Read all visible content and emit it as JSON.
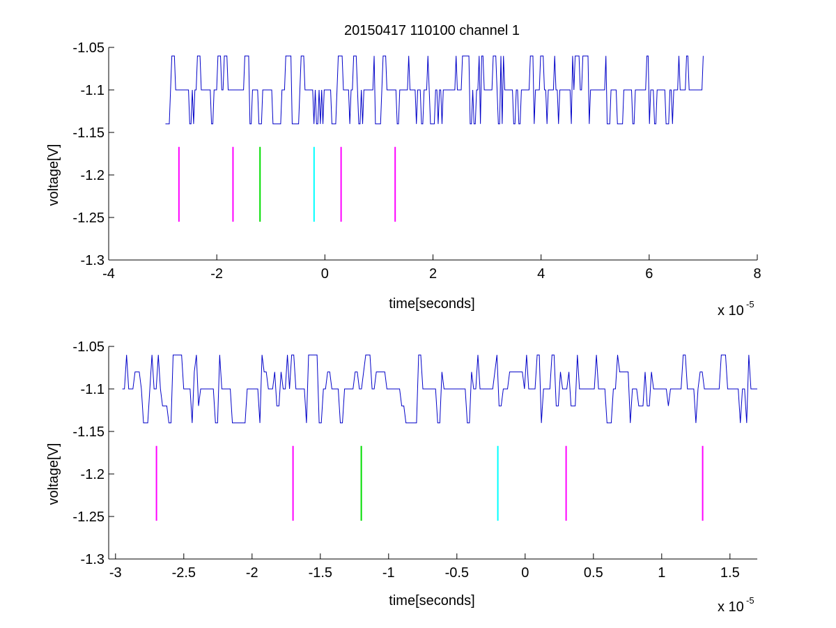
{
  "figure": {
    "title": "20150417 110100 channel 1"
  },
  "colors": {
    "signal": "#0000c8",
    "magenta": "#ff00ff",
    "green": "#00dd00",
    "cyan": "#00ffff",
    "axis": "#000000"
  },
  "chart_data": [
    {
      "type": "line",
      "title": "20150417 110100 channel 1",
      "xlabel": "time[seconds]",
      "ylabel": "voltage[V]",
      "x_exponent_label": "x 10",
      "x_exponent": "-5",
      "xlim": [
        -4,
        8
      ],
      "ylim": [
        -1.3,
        -1.05
      ],
      "xticks": [
        -4,
        -2,
        0,
        2,
        4,
        6,
        8
      ],
      "xtick_labels": [
        "-4",
        "-2",
        "0",
        "2",
        "4",
        "6",
        "8"
      ],
      "yticks": [
        -1.3,
        -1.25,
        -1.2,
        -1.15,
        -1.1,
        -1.05
      ],
      "ytick_labels": [
        "-1.3",
        "-1.25",
        "-1.2",
        "-1.15",
        "-1.1",
        "-1.05"
      ],
      "grid": false,
      "series": [
        {
          "signal": true,
          "color": "#0000c8",
          "x_range": [
            -2.95,
            7.0
          ],
          "baseline": -1.1,
          "levels": [
            -1.06,
            -1.1,
            -1.14
          ],
          "seed": 7
        }
      ],
      "markers": [
        {
          "x": -2.7,
          "y_range": [
            -1.255,
            -1.167
          ],
          "color": "#ff00ff"
        },
        {
          "x": -1.7,
          "y_range": [
            -1.255,
            -1.167
          ],
          "color": "#ff00ff"
        },
        {
          "x": -1.2,
          "y_range": [
            -1.255,
            -1.167
          ],
          "color": "#00dd00"
        },
        {
          "x": -0.2,
          "y_range": [
            -1.255,
            -1.167
          ],
          "color": "#00ffff"
        },
        {
          "x": 0.3,
          "y_range": [
            -1.255,
            -1.167
          ],
          "color": "#ff00ff"
        },
        {
          "x": 1.3,
          "y_range": [
            -1.255,
            -1.167
          ],
          "color": "#ff00ff"
        }
      ]
    },
    {
      "type": "line",
      "title": "",
      "xlabel": "time[seconds]",
      "ylabel": "voltage[V]",
      "x_exponent_label": "x 10",
      "x_exponent": "-5",
      "xlim": [
        -3.05,
        1.7
      ],
      "ylim": [
        -1.3,
        -1.05
      ],
      "xticks": [
        -3,
        -2.5,
        -2,
        -1.5,
        -1,
        -0.5,
        0,
        0.5,
        1,
        1.5
      ],
      "xtick_labels": [
        "-3",
        "-2.5",
        "-2",
        "-1.5",
        "-1",
        "-0.5",
        "0",
        "0.5",
        "1",
        "1.5"
      ],
      "yticks": [
        -1.3,
        -1.25,
        -1.2,
        -1.15,
        -1.1,
        -1.05
      ],
      "ytick_labels": [
        "-1.3",
        "-1.25",
        "-1.2",
        "-1.15",
        "-1.1",
        "-1.05"
      ],
      "grid": false,
      "series": [
        {
          "signal": true,
          "color": "#0000c8",
          "x_range": [
            -2.95,
            1.7
          ],
          "baseline": -1.1,
          "levels": [
            -1.06,
            -1.08,
            -1.1,
            -1.12,
            -1.14
          ],
          "seed": 13
        }
      ],
      "markers": [
        {
          "x": -2.7,
          "y_range": [
            -1.255,
            -1.167
          ],
          "color": "#ff00ff"
        },
        {
          "x": -1.7,
          "y_range": [
            -1.255,
            -1.167
          ],
          "color": "#ff00ff"
        },
        {
          "x": -1.2,
          "y_range": [
            -1.255,
            -1.167
          ],
          "color": "#00dd00"
        },
        {
          "x": -0.2,
          "y_range": [
            -1.255,
            -1.167
          ],
          "color": "#00ffff"
        },
        {
          "x": 0.3,
          "y_range": [
            -1.255,
            -1.167
          ],
          "color": "#ff00ff"
        },
        {
          "x": 1.3,
          "y_range": [
            -1.255,
            -1.167
          ],
          "color": "#ff00ff"
        }
      ]
    }
  ]
}
